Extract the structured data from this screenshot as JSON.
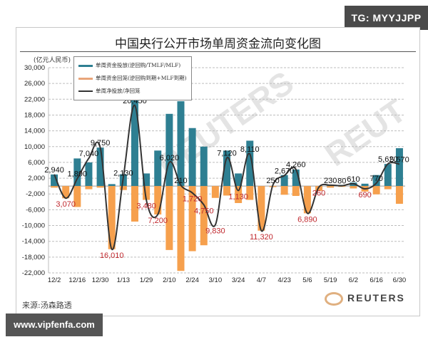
{
  "badges": {
    "top_right": "TG: MYYJJPP",
    "bottom_left": "www.vipfenfa.com"
  },
  "chart_meta": {
    "title": "中国央行公开市场单周资金流向变化图",
    "unit": "(亿元人民币)",
    "source": "来源:汤森路透",
    "brand": "REUTERS",
    "legend": [
      {
        "label": "单周资金投放(逆回购/TMLF/MLF)",
        "color": "#2e7f92"
      },
      {
        "label": "单周资金回笼(逆回购到期+MLF到期)",
        "color": "#f4a460"
      },
      {
        "label": "单周净投放/净回笼",
        "color": "#333333"
      }
    ],
    "colors": {
      "injection": "#2e7f92",
      "withdrawal": "#f6a04d",
      "net": "#333333",
      "neg_label": "#c0282e"
    }
  },
  "chart_data": {
    "type": "bar",
    "title": "中国央行公开市场单周资金流向变化图",
    "ylabel": "亿元人民币",
    "xlabel": "",
    "ylim": [
      -22000,
      30000
    ],
    "yticks": [
      30000,
      26000,
      22000,
      18000,
      14000,
      10000,
      6000,
      2000,
      -2000,
      -6000,
      -10000,
      -14000,
      -18000,
      -22000
    ],
    "ytick_labels": [
      "30,000",
      "26,000",
      "22,000",
      "18,000",
      "14,000",
      "10,000",
      "6,000",
      "2,000",
      "-2,000",
      "-6,000",
      "-10,000",
      "-14,000",
      "-18,000",
      "-22,000"
    ],
    "x_tick_labels": [
      "12/2",
      "12/16",
      "12/30",
      "1/13",
      "1/29",
      "2/10",
      "2/24",
      "3/10",
      "3/24",
      "4/7",
      "4/23",
      "5/6",
      "5/19",
      "6/2",
      "6/16",
      "6/30"
    ],
    "grid": true,
    "legend_position": "top-left",
    "weeks": 31,
    "series": [
      {
        "name": "单周资金投放(逆回购/TMLF/MLF)",
        "type": "bar",
        "values": [
          2940,
          0,
          7000,
          6000,
          9750,
          500,
          3000,
          29000,
          3200,
          9000,
          18300,
          21500,
          14700,
          10000,
          0,
          9000,
          3200,
          11500,
          0,
          0,
          2800,
          4200,
          0,
          0,
          200,
          300,
          900,
          600,
          2800,
          5600,
          9600
        ]
      },
      {
        "name": "单周资金回笼(逆回购到期+MLF到期)",
        "type": "bar",
        "values": [
          -400,
          -3100,
          -5300,
          -800,
          -400,
          -16000,
          -1000,
          -9000,
          -3500,
          -7200,
          -16200,
          -21500,
          -16500,
          -15000,
          -3000,
          -2400,
          -4300,
          -3500,
          -11300,
          -250,
          -2200,
          -2500,
          -6900,
          -1200,
          -400,
          -200,
          -600,
          -1400,
          -2100,
          -800,
          -4500
        ]
      },
      {
        "name": "单周净投放/净回笼",
        "type": "line",
        "values": [
          2940,
          -3070,
          1890,
          7040,
          9750,
          -16010,
          2130,
          20450,
          -3480,
          -7200,
          6020,
          210,
          -1720,
          -4750,
          -9830,
          7120,
          -1130,
          8110,
          -11320,
          250,
          2670,
          4260,
          -6890,
          -260,
          230,
          80,
          610,
          -690,
          770,
          5620,
          5570
        ]
      }
    ],
    "net_labels": [
      {
        "i": 0,
        "text": "2,940",
        "neg": false
      },
      {
        "i": 1,
        "text": "3,070",
        "neg": true
      },
      {
        "i": 2,
        "text": "1,890",
        "neg": false
      },
      {
        "i": 3,
        "text": "7,040",
        "neg": false
      },
      {
        "i": 4,
        "text": "9,750",
        "neg": false
      },
      {
        "i": 5,
        "text": "16,010",
        "neg": true
      },
      {
        "i": 6,
        "text": "2,130",
        "neg": false
      },
      {
        "i": 7,
        "text": "20,450",
        "neg": false
      },
      {
        "i": 8,
        "text": "3,480",
        "neg": true
      },
      {
        "i": 9,
        "text": "7,200",
        "neg": true
      },
      {
        "i": 10,
        "text": "6,020",
        "neg": false
      },
      {
        "i": 11,
        "text": "210",
        "neg": false
      },
      {
        "i": 12,
        "text": "1,720",
        "neg": true
      },
      {
        "i": 13,
        "text": "4,750",
        "neg": true
      },
      {
        "i": 14,
        "text": "9,830",
        "neg": true
      },
      {
        "i": 15,
        "text": "7,120",
        "neg": false
      },
      {
        "i": 16,
        "text": "1,130",
        "neg": true
      },
      {
        "i": 17,
        "text": "8,110",
        "neg": false
      },
      {
        "i": 18,
        "text": "11,320",
        "neg": true
      },
      {
        "i": 19,
        "text": "250",
        "neg": false
      },
      {
        "i": 20,
        "text": "2,670",
        "neg": false
      },
      {
        "i": 21,
        "text": "4,260",
        "neg": false
      },
      {
        "i": 22,
        "text": "6,890",
        "neg": true
      },
      {
        "i": 23,
        "text": "260",
        "neg": true
      },
      {
        "i": 24,
        "text": "230",
        "neg": false
      },
      {
        "i": 25,
        "text": "80",
        "neg": false
      },
      {
        "i": 26,
        "text": "610",
        "neg": false
      },
      {
        "i": 27,
        "text": "690",
        "neg": true
      },
      {
        "i": 28,
        "text": "770",
        "neg": false
      },
      {
        "i": 29,
        "text": "5,620",
        "neg": false
      },
      {
        "i": 30,
        "text": "5,570",
        "neg": false
      }
    ]
  }
}
